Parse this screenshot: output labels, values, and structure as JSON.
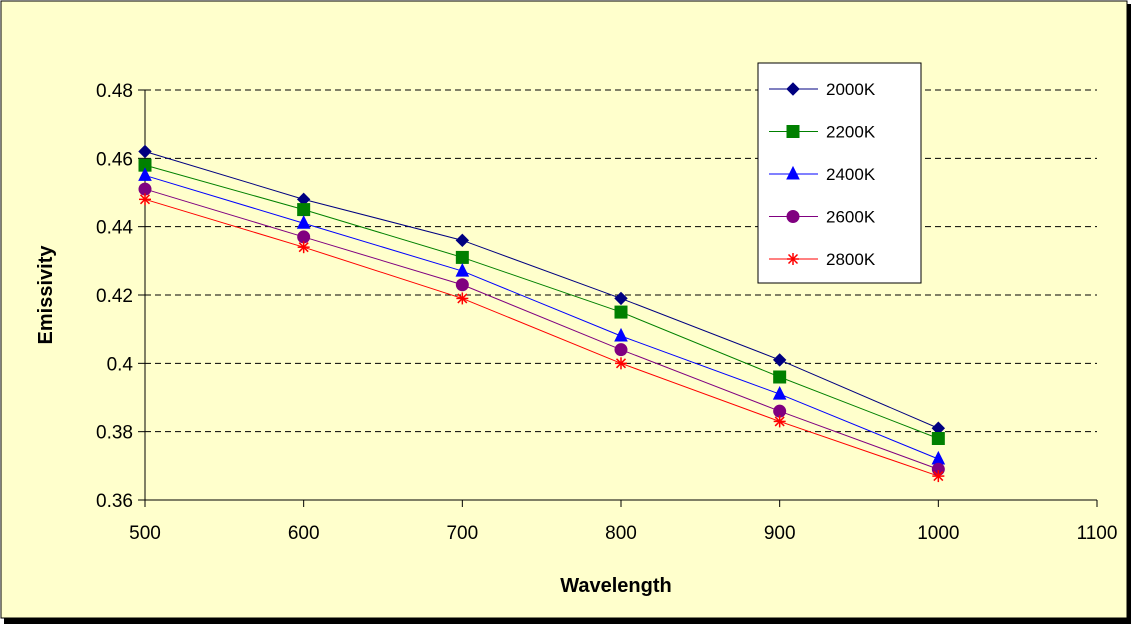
{
  "chart_data": {
    "type": "line",
    "title": "",
    "xlabel": "Wavelength",
    "ylabel": "Emissivity",
    "xlim": [
      500,
      1100
    ],
    "ylim": [
      0.36,
      0.48
    ],
    "x_ticks": [
      500,
      600,
      700,
      800,
      900,
      1000,
      1100
    ],
    "y_ticks": [
      0.36,
      0.38,
      0.4,
      0.42,
      0.44,
      0.46,
      0.48
    ],
    "x_tick_labels": [
      "500",
      "600",
      "700",
      "800",
      "900",
      "1000",
      "1100"
    ],
    "y_tick_labels": [
      "0.36",
      "0.38",
      "0.4",
      "0.42",
      "0.44",
      "0.46",
      "0.48"
    ],
    "grid": "horizontal dashed",
    "legend_position": "top-right",
    "x": [
      500,
      600,
      700,
      800,
      900,
      1000
    ],
    "series": [
      {
        "name": "2000K",
        "color": "#000080",
        "marker": "diamond",
        "values": [
          0.462,
          0.448,
          0.436,
          0.419,
          0.401,
          0.381
        ]
      },
      {
        "name": "2200K",
        "color": "#008000",
        "marker": "square",
        "values": [
          0.458,
          0.445,
          0.431,
          0.415,
          0.396,
          0.378
        ]
      },
      {
        "name": "2400K",
        "color": "#0000ff",
        "marker": "triangle",
        "values": [
          0.455,
          0.441,
          0.427,
          0.408,
          0.391,
          0.372
        ]
      },
      {
        "name": "2600K",
        "color": "#800080",
        "marker": "circle",
        "values": [
          0.451,
          0.437,
          0.423,
          0.404,
          0.386,
          0.369
        ]
      },
      {
        "name": "2800K",
        "color": "#ff0000",
        "marker": "star",
        "values": [
          0.448,
          0.434,
          0.419,
          0.4,
          0.383,
          0.367
        ]
      }
    ],
    "colors": {
      "background": "#ffffcc",
      "grid": "#000000",
      "axis": "#000000"
    }
  }
}
